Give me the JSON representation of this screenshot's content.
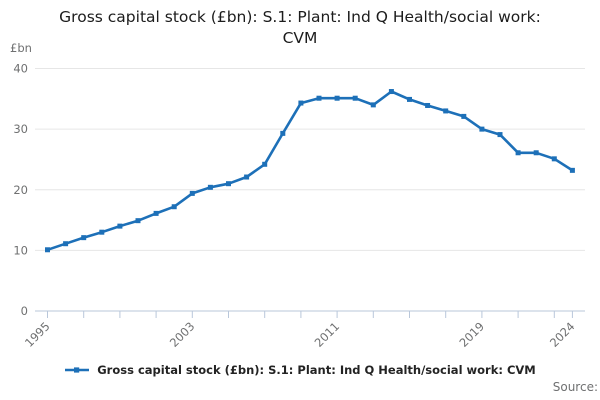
{
  "page": {
    "source_label": "Source:"
  },
  "chart_data": {
    "type": "line",
    "title": "Gross capital stock (£bn): S.1: Plant: Ind Q Health/social work: CVM",
    "unit_label": "£bn",
    "legend_label": "Gross capital stock (£bn): S.1: Plant: Ind Q Health/social work: CVM",
    "x": [
      1995,
      1996,
      1997,
      1998,
      1999,
      2000,
      2001,
      2002,
      2003,
      2004,
      2005,
      2006,
      2007,
      2008,
      2009,
      2010,
      2011,
      2012,
      2013,
      2014,
      2015,
      2016,
      2017,
      2018,
      2019,
      2020,
      2021,
      2022,
      2023,
      2024
    ],
    "series": [
      {
        "name": "Gross capital stock (£bn): S.1: Plant: Ind Q Health/social work: CVM",
        "values": [
          10.1,
          11.1,
          12.1,
          13.0,
          14.0,
          14.9,
          16.1,
          17.2,
          19.4,
          20.4,
          21.0,
          22.1,
          24.2,
          29.3,
          34.3,
          35.1,
          35.1,
          35.1,
          34.0,
          36.2,
          34.9,
          33.9,
          33.0,
          32.1,
          30.0,
          29.1,
          26.1,
          26.1,
          25.1,
          23.2
        ]
      }
    ],
    "ylim": [
      0,
      40
    ],
    "yticks": [
      0,
      10,
      20,
      30,
      40
    ],
    "xtick_labels": [
      "1995",
      "2003",
      "2011",
      "2019",
      "2024"
    ],
    "minor_tick_step": 2,
    "grid": true,
    "legend_position": "bottom",
    "line_color": "#1d70b8",
    "grid_color": "#e6e6e6",
    "axis_color": "#b9c7da",
    "tick_text_color": "#6f7071"
  }
}
